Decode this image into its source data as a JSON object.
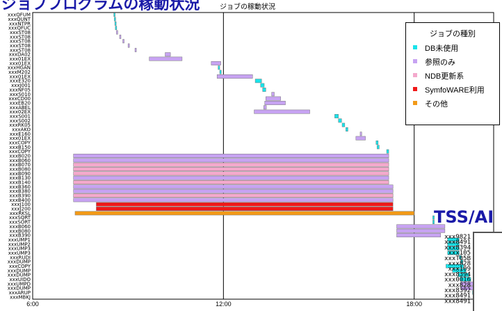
{
  "header": {
    "title_overlay": "ジョブプログラムの稼動状況",
    "chart_title": "ジョブの稼動状況"
  },
  "legend": {
    "title": "ジョブの種別",
    "items": [
      {
        "label": "DB未使用",
        "color": "#19e3ea"
      },
      {
        "label": "参照のみ",
        "color": "#c7a3f2"
      },
      {
        "label": "NDB更新系",
        "color": "#f4a9cc"
      },
      {
        "label": "SymfoWARE利用",
        "color": "#f01818"
      },
      {
        "label": "その他",
        "color": "#f29a18"
      }
    ]
  },
  "side_overlay": {
    "label": "TSS/AI",
    "ids": [
      "xxx9821",
      "xxx8491",
      "xxx8394",
      "xxx105",
      "xxxT05B",
      "xxx828",
      "xxx109",
      "xxx8394",
      "xxx0016",
      "xxx828",
      "xxx8392",
      "xxx8491",
      "xxx8491"
    ]
  },
  "chart_data": {
    "type": "gantt",
    "title": "ジョブの稼動状況",
    "xlabel": "",
    "ylabel": "",
    "x_ticks": [
      "6:00",
      "12:00",
      "18:00"
    ],
    "xlim": [
      "6:00",
      "20:30"
    ],
    "grid": "vertical at 12:00 and 18:00",
    "legend_position": "top-right",
    "jobs": [
      {
        "name": "xxxQFUM",
        "start": "8:33",
        "end": "8:35",
        "type": "DB未使用"
      },
      {
        "name": "xxxQUNT",
        "start": "8:34",
        "end": "8:36",
        "type": "DB未使用"
      },
      {
        "name": "xxxNTPR",
        "start": "8:35",
        "end": "8:37",
        "type": "DB未使用"
      },
      {
        "name": "xxxQFUC",
        "start": "8:36",
        "end": "8:38",
        "type": "DB未使用"
      },
      {
        "name": "xxxST08",
        "start": "8:38",
        "end": "8:40",
        "type": "参照のみ"
      },
      {
        "name": "xxxST08",
        "start": "8:44",
        "end": "8:46",
        "type": "参照のみ"
      },
      {
        "name": "xxxST08",
        "start": "8:50",
        "end": "8:52",
        "type": "参照のみ"
      },
      {
        "name": "xxxST08",
        "start": "9:00",
        "end": "9:02",
        "type": "参照のみ"
      },
      {
        "name": "xxxST08",
        "start": "9:13",
        "end": "9:15",
        "type": "参照のみ"
      },
      {
        "name": "xxxDA02",
        "start": "10:10",
        "end": "10:20",
        "type": "参照のみ"
      },
      {
        "name": "xxx01EX",
        "start": "9:40",
        "end": "10:42",
        "type": "参照のみ"
      },
      {
        "name": "xxx01EX",
        "start": "11:37",
        "end": "11:55",
        "type": "参照のみ"
      },
      {
        "name": "xxxHGAN",
        "start": "11:50",
        "end": "11:53",
        "type": "DB未使用"
      },
      {
        "name": "xxxM202",
        "start": "11:53",
        "end": "11:56",
        "type": "DB未使用"
      },
      {
        "name": "xxx01EX",
        "start": "11:48",
        "end": "12:55",
        "type": "参照のみ"
      },
      {
        "name": "xxxE320",
        "start": "13:00",
        "end": "13:12",
        "type": "DB未使用"
      },
      {
        "name": "xxxJ001",
        "start": "13:10",
        "end": "13:17",
        "type": "DB未使用"
      },
      {
        "name": "xxxNF05",
        "start": "13:14",
        "end": "13:20",
        "type": "DB未使用"
      },
      {
        "name": "xxxS010",
        "start": "13:31",
        "end": "13:36",
        "type": "参照のみ"
      },
      {
        "name": "xxxCD00",
        "start": "13:20",
        "end": "13:48",
        "type": "参照のみ"
      },
      {
        "name": "xxxEB20",
        "start": "13:18",
        "end": "13:57",
        "type": "参照のみ"
      },
      {
        "name": "xxxABEL",
        "start": "13:16",
        "end": "13:21",
        "type": "参照のみ"
      },
      {
        "name": "xxx02EX",
        "start": "12:58",
        "end": "14:43",
        "type": "参照のみ"
      },
      {
        "name": "xxxS001",
        "start": "15:30",
        "end": "15:37",
        "type": "DB未使用"
      },
      {
        "name": "xxxS002",
        "start": "15:37",
        "end": "15:43",
        "type": "DB未使用"
      },
      {
        "name": "xxxRK05",
        "start": "15:44",
        "end": "15:49",
        "type": "DB未使用"
      },
      {
        "name": "xxxAKO",
        "start": "15:51",
        "end": "15:55",
        "type": "DB未使用"
      },
      {
        "name": "xxxE160",
        "start": "16:18",
        "end": "16:21",
        "type": "参照のみ"
      },
      {
        "name": "xxx01EX",
        "start": "16:10",
        "end": "16:28",
        "type": "参照のみ"
      },
      {
        "name": "xxxCOPY",
        "start": "16:48",
        "end": "16:52",
        "type": "DB未使用"
      },
      {
        "name": "xxxB150",
        "start": "16:50",
        "end": "16:54",
        "type": "DB未使用"
      },
      {
        "name": "xxxCOPY",
        "start": "17:08",
        "end": "17:12",
        "type": "DB未使用"
      },
      {
        "name": "xxxB020",
        "start": "7:17",
        "end": "17:12",
        "type": "参照のみ"
      },
      {
        "name": "xxxB060",
        "start": "7:17",
        "end": "17:12",
        "type": "参照のみ"
      },
      {
        "name": "xxxB070",
        "start": "7:17",
        "end": "17:12",
        "type": "NDB更新系"
      },
      {
        "name": "xxxB080",
        "start": "7:17",
        "end": "17:12",
        "type": "NDB更新系"
      },
      {
        "name": "xxxB090",
        "start": "7:17",
        "end": "17:12",
        "type": "NDB更新系"
      },
      {
        "name": "xxxB130",
        "start": "7:17",
        "end": "17:12",
        "type": "参照のみ"
      },
      {
        "name": "xxxB140",
        "start": "7:17",
        "end": "17:12",
        "type": "NDB更新系"
      },
      {
        "name": "xxxB360",
        "start": "7:17",
        "end": "17:20",
        "type": "参照のみ"
      },
      {
        "name": "xxxB380",
        "start": "7:17",
        "end": "17:20",
        "type": "参照のみ"
      },
      {
        "name": "xxxB390",
        "start": "7:17",
        "end": "17:20",
        "type": "NDB更新系"
      },
      {
        "name": "xxxB400",
        "start": "7:17",
        "end": "17:20",
        "type": "参照のみ"
      },
      {
        "name": "xxxJ100",
        "start": "8:00",
        "end": "17:20",
        "type": "SymfoWARE利用"
      },
      {
        "name": "xxxJ200",
        "start": "8:00",
        "end": "17:20",
        "type": "SymfoWARE利用"
      },
      {
        "name": "xxxRKSL",
        "start": "7:20",
        "end": "18:00",
        "type": "その他"
      },
      {
        "name": "xxxSQRT",
        "start": "18:35",
        "end": "18:38",
        "type": "DB未使用"
      },
      {
        "name": "xxxSORT",
        "start": "18:35",
        "end": "18:38",
        "type": "DB未使用"
      },
      {
        "name": "xxxB060",
        "start": "17:27",
        "end": "18:58",
        "type": "参照のみ"
      },
      {
        "name": "xxxB080",
        "start": "17:27",
        "end": "18:58",
        "type": "参照のみ"
      },
      {
        "name": "xxxB390",
        "start": "17:27",
        "end": "18:50",
        "type": "参照のみ"
      },
      {
        "name": "xxxUMP1",
        "start": "19:03",
        "end": "19:25",
        "type": "DB未使用"
      },
      {
        "name": "xxxUMP2",
        "start": "19:03",
        "end": "19:25",
        "type": "DB未使用"
      },
      {
        "name": "xxxUMP3",
        "start": "19:03",
        "end": "19:25",
        "type": "DB未使用"
      },
      {
        "name": "xxxUMP3",
        "start": "19:03",
        "end": "19:25",
        "type": "DB未使用"
      },
      {
        "name": "xxxRUDI",
        "start": "19:25",
        "end": "19:29",
        "type": "DB未使用"
      },
      {
        "name": "xxxDUMP",
        "start": "19:28",
        "end": "19:32",
        "type": "DB未使用"
      },
      {
        "name": "xxxCOPY",
        "start": "19:00",
        "end": "19:33",
        "type": "DB未使用"
      },
      {
        "name": "xxxDUMP",
        "start": "19:12",
        "end": "19:38",
        "type": "DB未使用"
      },
      {
        "name": "xxxDUMP",
        "start": "19:23",
        "end": "19:43",
        "type": "DB未使用"
      },
      {
        "name": "xxxUIDO",
        "start": "19:27",
        "end": "19:47",
        "type": "DB未使用"
      },
      {
        "name": "xxxUMPD",
        "start": "19:28",
        "end": "19:52",
        "type": "参照のみ"
      },
      {
        "name": "xxxDUMP",
        "start": "19:28",
        "end": "19:55",
        "type": "参照のみ"
      },
      {
        "name": "xxxARUP",
        "start": "19:50",
        "end": "19:54",
        "type": "DB未使用"
      },
      {
        "name": "xxxMBKJ",
        "start": "19:54",
        "end": "19:58",
        "type": "DB未使用"
      }
    ]
  }
}
